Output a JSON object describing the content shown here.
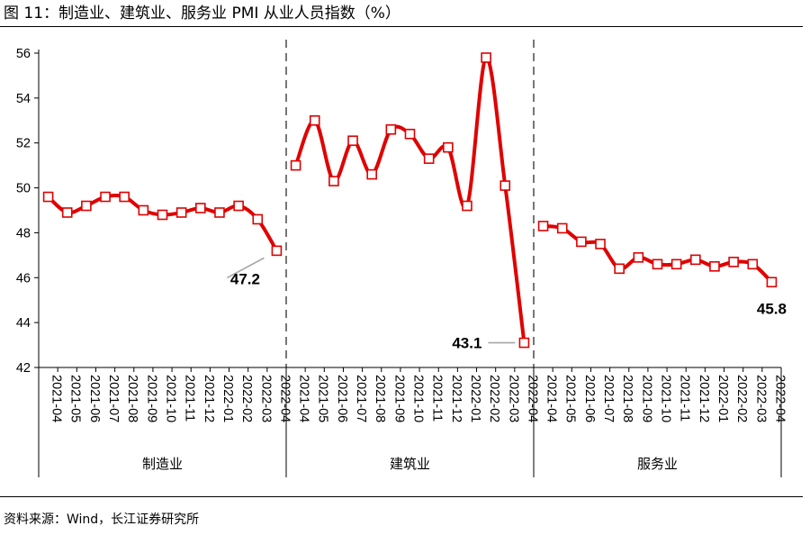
{
  "header": {
    "title": "图 11：制造业、建筑业、服务业 PMI 从业人员指数（%）"
  },
  "footer": {
    "source": "资料来源：Wind，长江证券研究所"
  },
  "chart_data": {
    "type": "line",
    "title": "图 11：制造业、建筑业、服务业 PMI 从业人员指数（%）",
    "xlabel": "",
    "ylabel": "",
    "ylim": [
      42,
      56
    ],
    "yticks": [
      "42",
      "44",
      "46",
      "48",
      "50",
      "52",
      "54",
      "56"
    ],
    "grid": false,
    "legend": "none",
    "line_color": "#e00000",
    "marker_fill": "#ffffff",
    "separator_color": "#555555",
    "groups": [
      {
        "name": "制造业",
        "categories": [
          "2021-04",
          "2021-05",
          "2021-06",
          "2021-07",
          "2021-08",
          "2021-09",
          "2021-10",
          "2021-11",
          "2021-12",
          "2022-01",
          "2022-02",
          "2022-03",
          "2022-04"
        ],
        "values": [
          49.6,
          48.9,
          49.2,
          49.6,
          49.6,
          49.0,
          48.8,
          48.9,
          49.1,
          48.9,
          49.2,
          48.6,
          47.2
        ],
        "annotation": "47.2"
      },
      {
        "name": "建筑业",
        "categories": [
          "2021-04",
          "2021-05",
          "2021-06",
          "2021-07",
          "2021-08",
          "2021-09",
          "2021-10",
          "2021-11",
          "2021-12",
          "2022-01",
          "2022-02",
          "2022-03",
          "2022-04"
        ],
        "values": [
          51.0,
          53.0,
          50.3,
          52.1,
          50.6,
          52.6,
          52.4,
          51.3,
          51.8,
          49.2,
          55.8,
          50.1,
          43.1
        ],
        "annotation": "43.1"
      },
      {
        "name": "服务业",
        "categories": [
          "2021-04",
          "2021-05",
          "2021-06",
          "2021-07",
          "2021-08",
          "2021-09",
          "2021-10",
          "2021-11",
          "2021-12",
          "2022-01",
          "2022-02",
          "2022-03",
          "2022-04"
        ],
        "values": [
          48.3,
          48.2,
          47.6,
          47.5,
          46.4,
          46.9,
          46.6,
          46.6,
          46.8,
          46.5,
          46.7,
          46.6,
          45.8
        ],
        "annotation": "45.8"
      }
    ]
  }
}
